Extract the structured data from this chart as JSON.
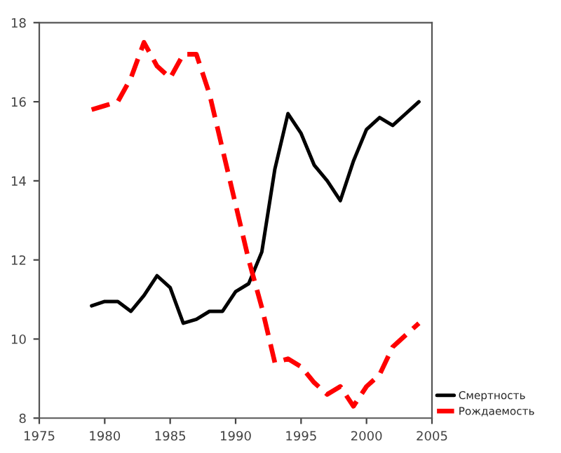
{
  "chart_data": {
    "type": "line",
    "x": [
      1979,
      1980,
      1981,
      1982,
      1983,
      1984,
      1985,
      1986,
      1987,
      1988,
      1989,
      1990,
      1991,
      1992,
      1993,
      1994,
      1995,
      1996,
      1997,
      1998,
      1999,
      2000,
      2001,
      2002,
      2003,
      2004
    ],
    "series": [
      {
        "name": "Смертность",
        "color": "#000000",
        "line_style": "solid",
        "values": [
          10.84,
          10.95,
          10.95,
          10.7,
          11.1,
          11.6,
          11.3,
          10.4,
          10.5,
          10.7,
          10.7,
          11.2,
          11.4,
          12.2,
          14.3,
          15.7,
          15.2,
          14.4,
          14.0,
          13.5,
          14.5,
          15.3,
          15.6,
          15.4,
          15.7,
          16.0
        ]
      },
      {
        "name": "Рождаемость",
        "color": "#ff0000",
        "line_style": "dashed",
        "values": [
          15.8,
          15.9,
          16.0,
          16.6,
          17.5,
          16.9,
          16.6,
          17.2,
          17.2,
          16.2,
          14.8,
          13.4,
          12.0,
          10.8,
          9.4,
          9.5,
          9.3,
          8.9,
          8.6,
          8.8,
          8.3,
          8.8,
          9.1,
          9.8,
          10.1,
          10.4
        ]
      }
    ],
    "xlim": [
      1975,
      2005
    ],
    "xticks": [
      1975,
      1980,
      1985,
      1990,
      1995,
      2000,
      2005
    ],
    "ylim": [
      8,
      18
    ],
    "yticks": [
      8,
      10,
      12,
      14,
      16,
      18
    ],
    "grid": false,
    "legend": "bottom right",
    "marker": "none"
  }
}
